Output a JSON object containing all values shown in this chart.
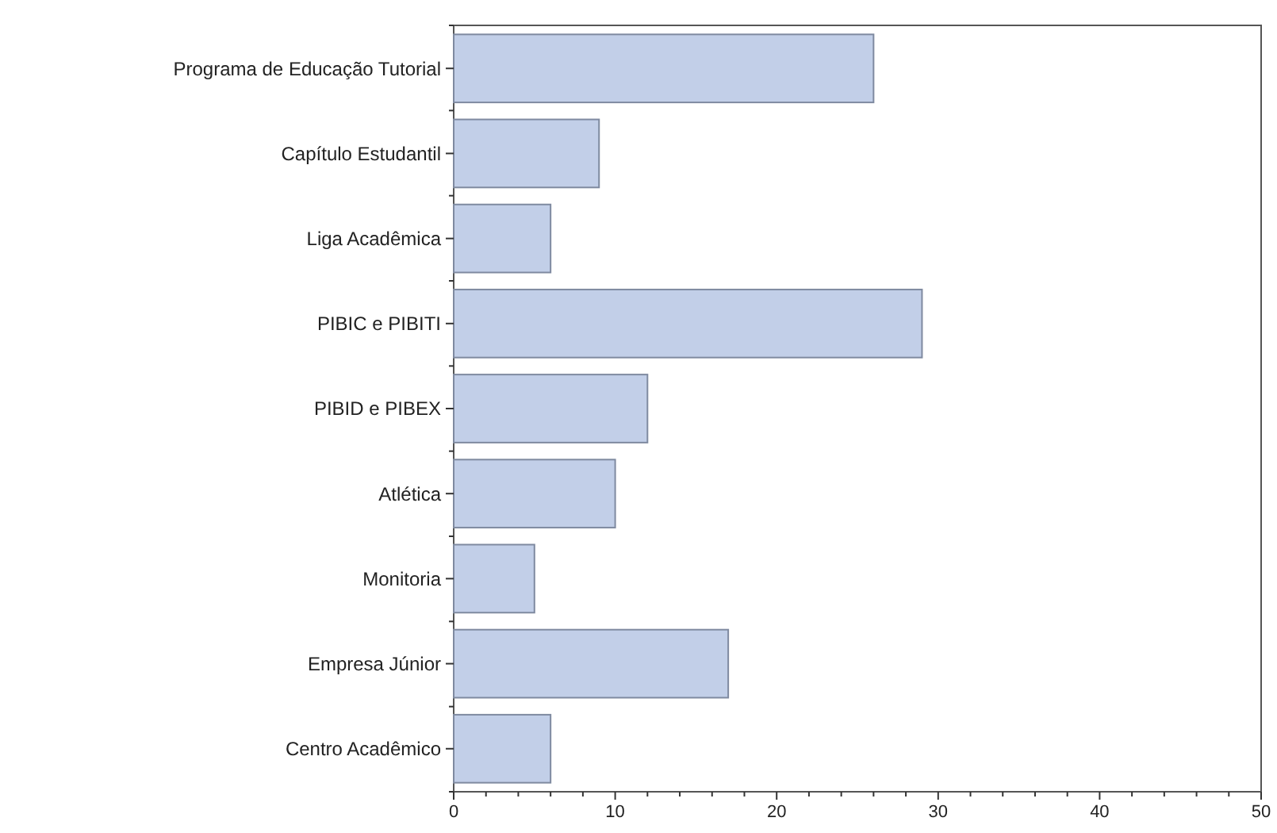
{
  "chart_data": {
    "type": "bar",
    "orientation": "horizontal",
    "categories": [
      "Programa de Educação Tutorial",
      "Capítulo Estudantil",
      "Liga Acadêmica",
      "PIBIC e PIBITI",
      "PIBID e PIBEX",
      "Atlética",
      "Monitoria",
      "Empresa Júnior",
      "Centro Acadêmico"
    ],
    "values": [
      26,
      9,
      6,
      29,
      12,
      10,
      5,
      17,
      6
    ],
    "color": "#c2cfe8",
    "xlim": [
      0,
      50
    ],
    "xticks": [
      0,
      {
        "value": 2,
        "label": null
      },
      {
        "value": 4,
        "label": null
      },
      {
        "value": 6,
        "label": null
      },
      {
        "value": 8,
        "label": null
      },
      10,
      {
        "value": 12,
        "label": null
      },
      {
        "value": 14,
        "label": null
      },
      {
        "value": 16,
        "label": null
      },
      {
        "value": 18,
        "label": null
      },
      20,
      {
        "value": 22,
        "label": null
      },
      {
        "value": 24,
        "label": null
      },
      {
        "value": 26,
        "label": null
      },
      {
        "value": 28,
        "label": null
      },
      30,
      {
        "value": 32,
        "label": null
      },
      {
        "value": 34,
        "label": null
      },
      {
        "value": 36,
        "label": null
      },
      {
        "value": 38,
        "label": null
      },
      40,
      {
        "value": 42,
        "label": null
      },
      {
        "value": 44,
        "label": null
      },
      {
        "value": 46,
        "label": null
      },
      {
        "value": 48,
        "label": null
      },
      50
    ]
  }
}
